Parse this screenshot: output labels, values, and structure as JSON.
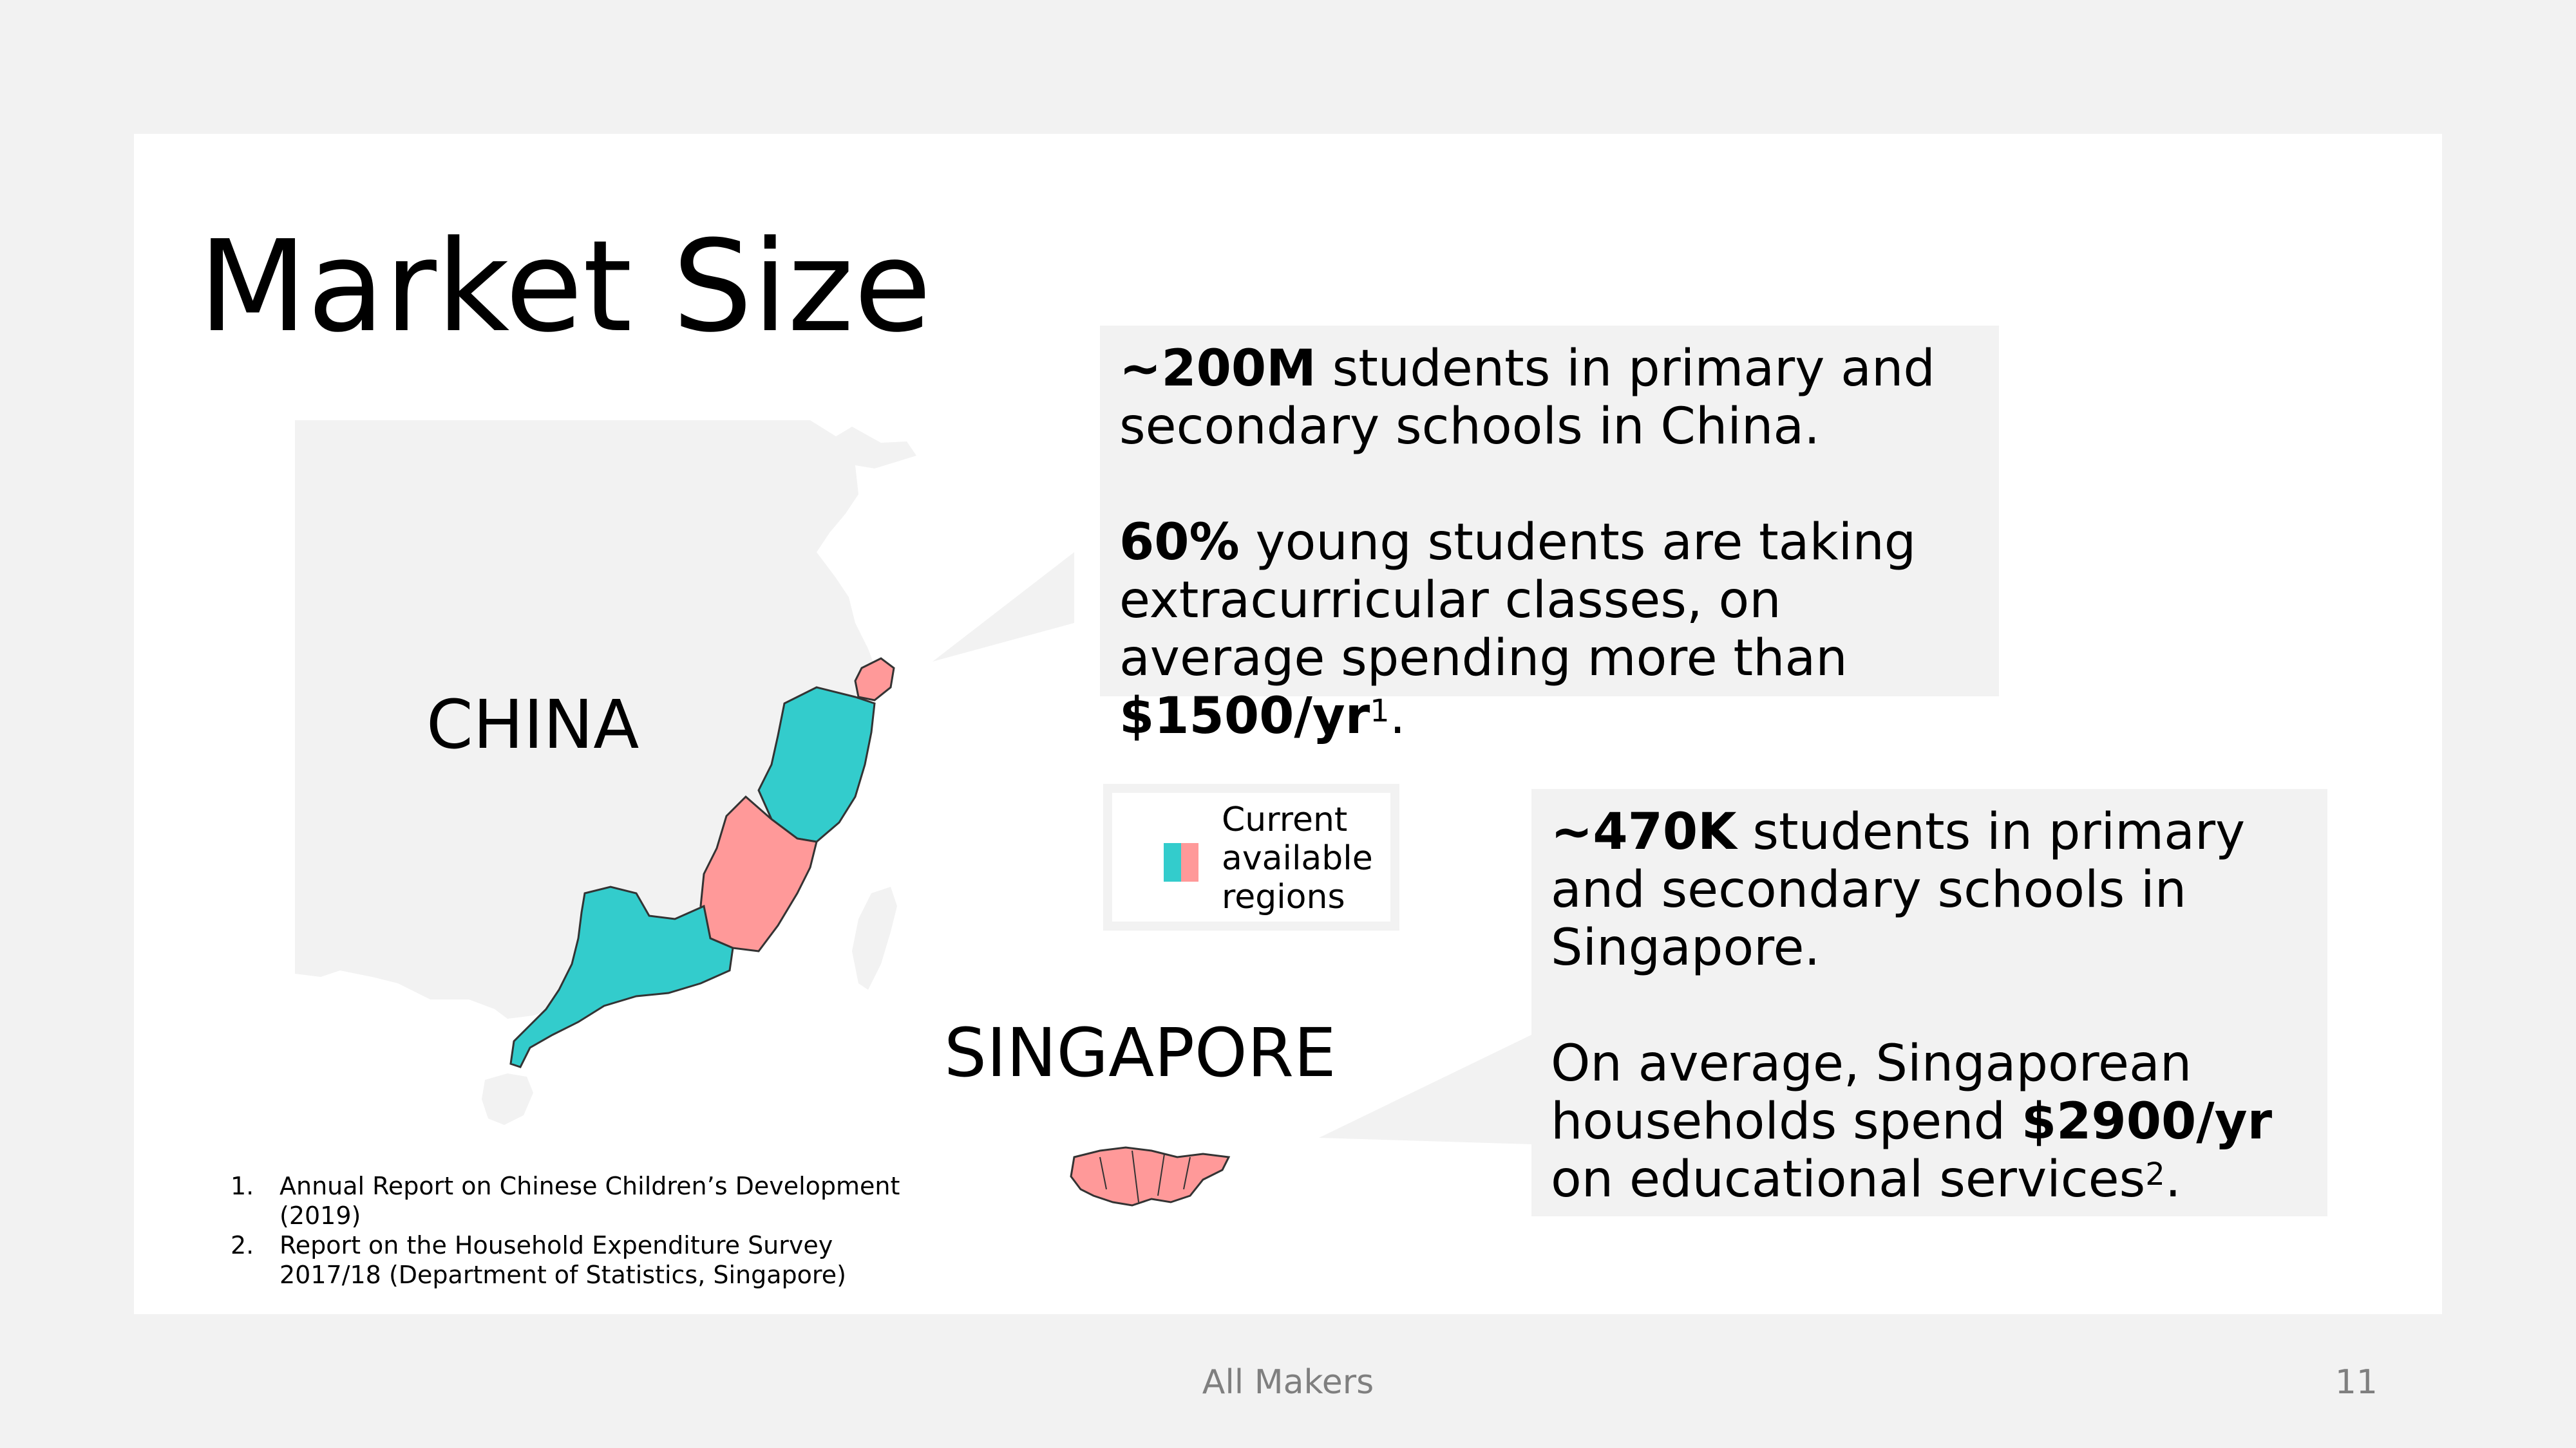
{
  "slide": {
    "title": "Market Size"
  },
  "map": {
    "china_label": "CHINA",
    "singapore_label": "SINGAPORE",
    "colors": {
      "teal": "#33cccc",
      "pink": "#ff9999",
      "land": "#f2f2f2",
      "callout_bg": "#f2f2f2"
    }
  },
  "callout_china": {
    "p1_bold": "~200M",
    "p1_rest": " students in primary and secondary schools in China.",
    "p2_bold": "60%",
    "p2_mid": " young students are taking extracurricular classes, on average spending more than ",
    "p2_bold2": "$1500/yr",
    "p2_sup": "1",
    "p2_end": "."
  },
  "callout_singapore": {
    "p1_bold": "~470K",
    "p1_rest": " students in primary and secondary schools in Singapore.",
    "p2_start": "On average, Singaporean households spend ",
    "p2_bold": "$2900/yr",
    "p2_mid": " on educational services",
    "p2_sup": "2",
    "p2_end": "."
  },
  "legend": {
    "line1": "Current",
    "line2": "available",
    "line3": "regions"
  },
  "footnotes": [
    {
      "num": "1.",
      "text": "Annual Report on Chinese Children’s Development (2019)"
    },
    {
      "num": "2.",
      "text": "Report on the Household Expenditure Survey 2017/18 (Department of Statistics, Singapore)"
    }
  ],
  "footer": {
    "center": "All Makers",
    "page": "11"
  }
}
